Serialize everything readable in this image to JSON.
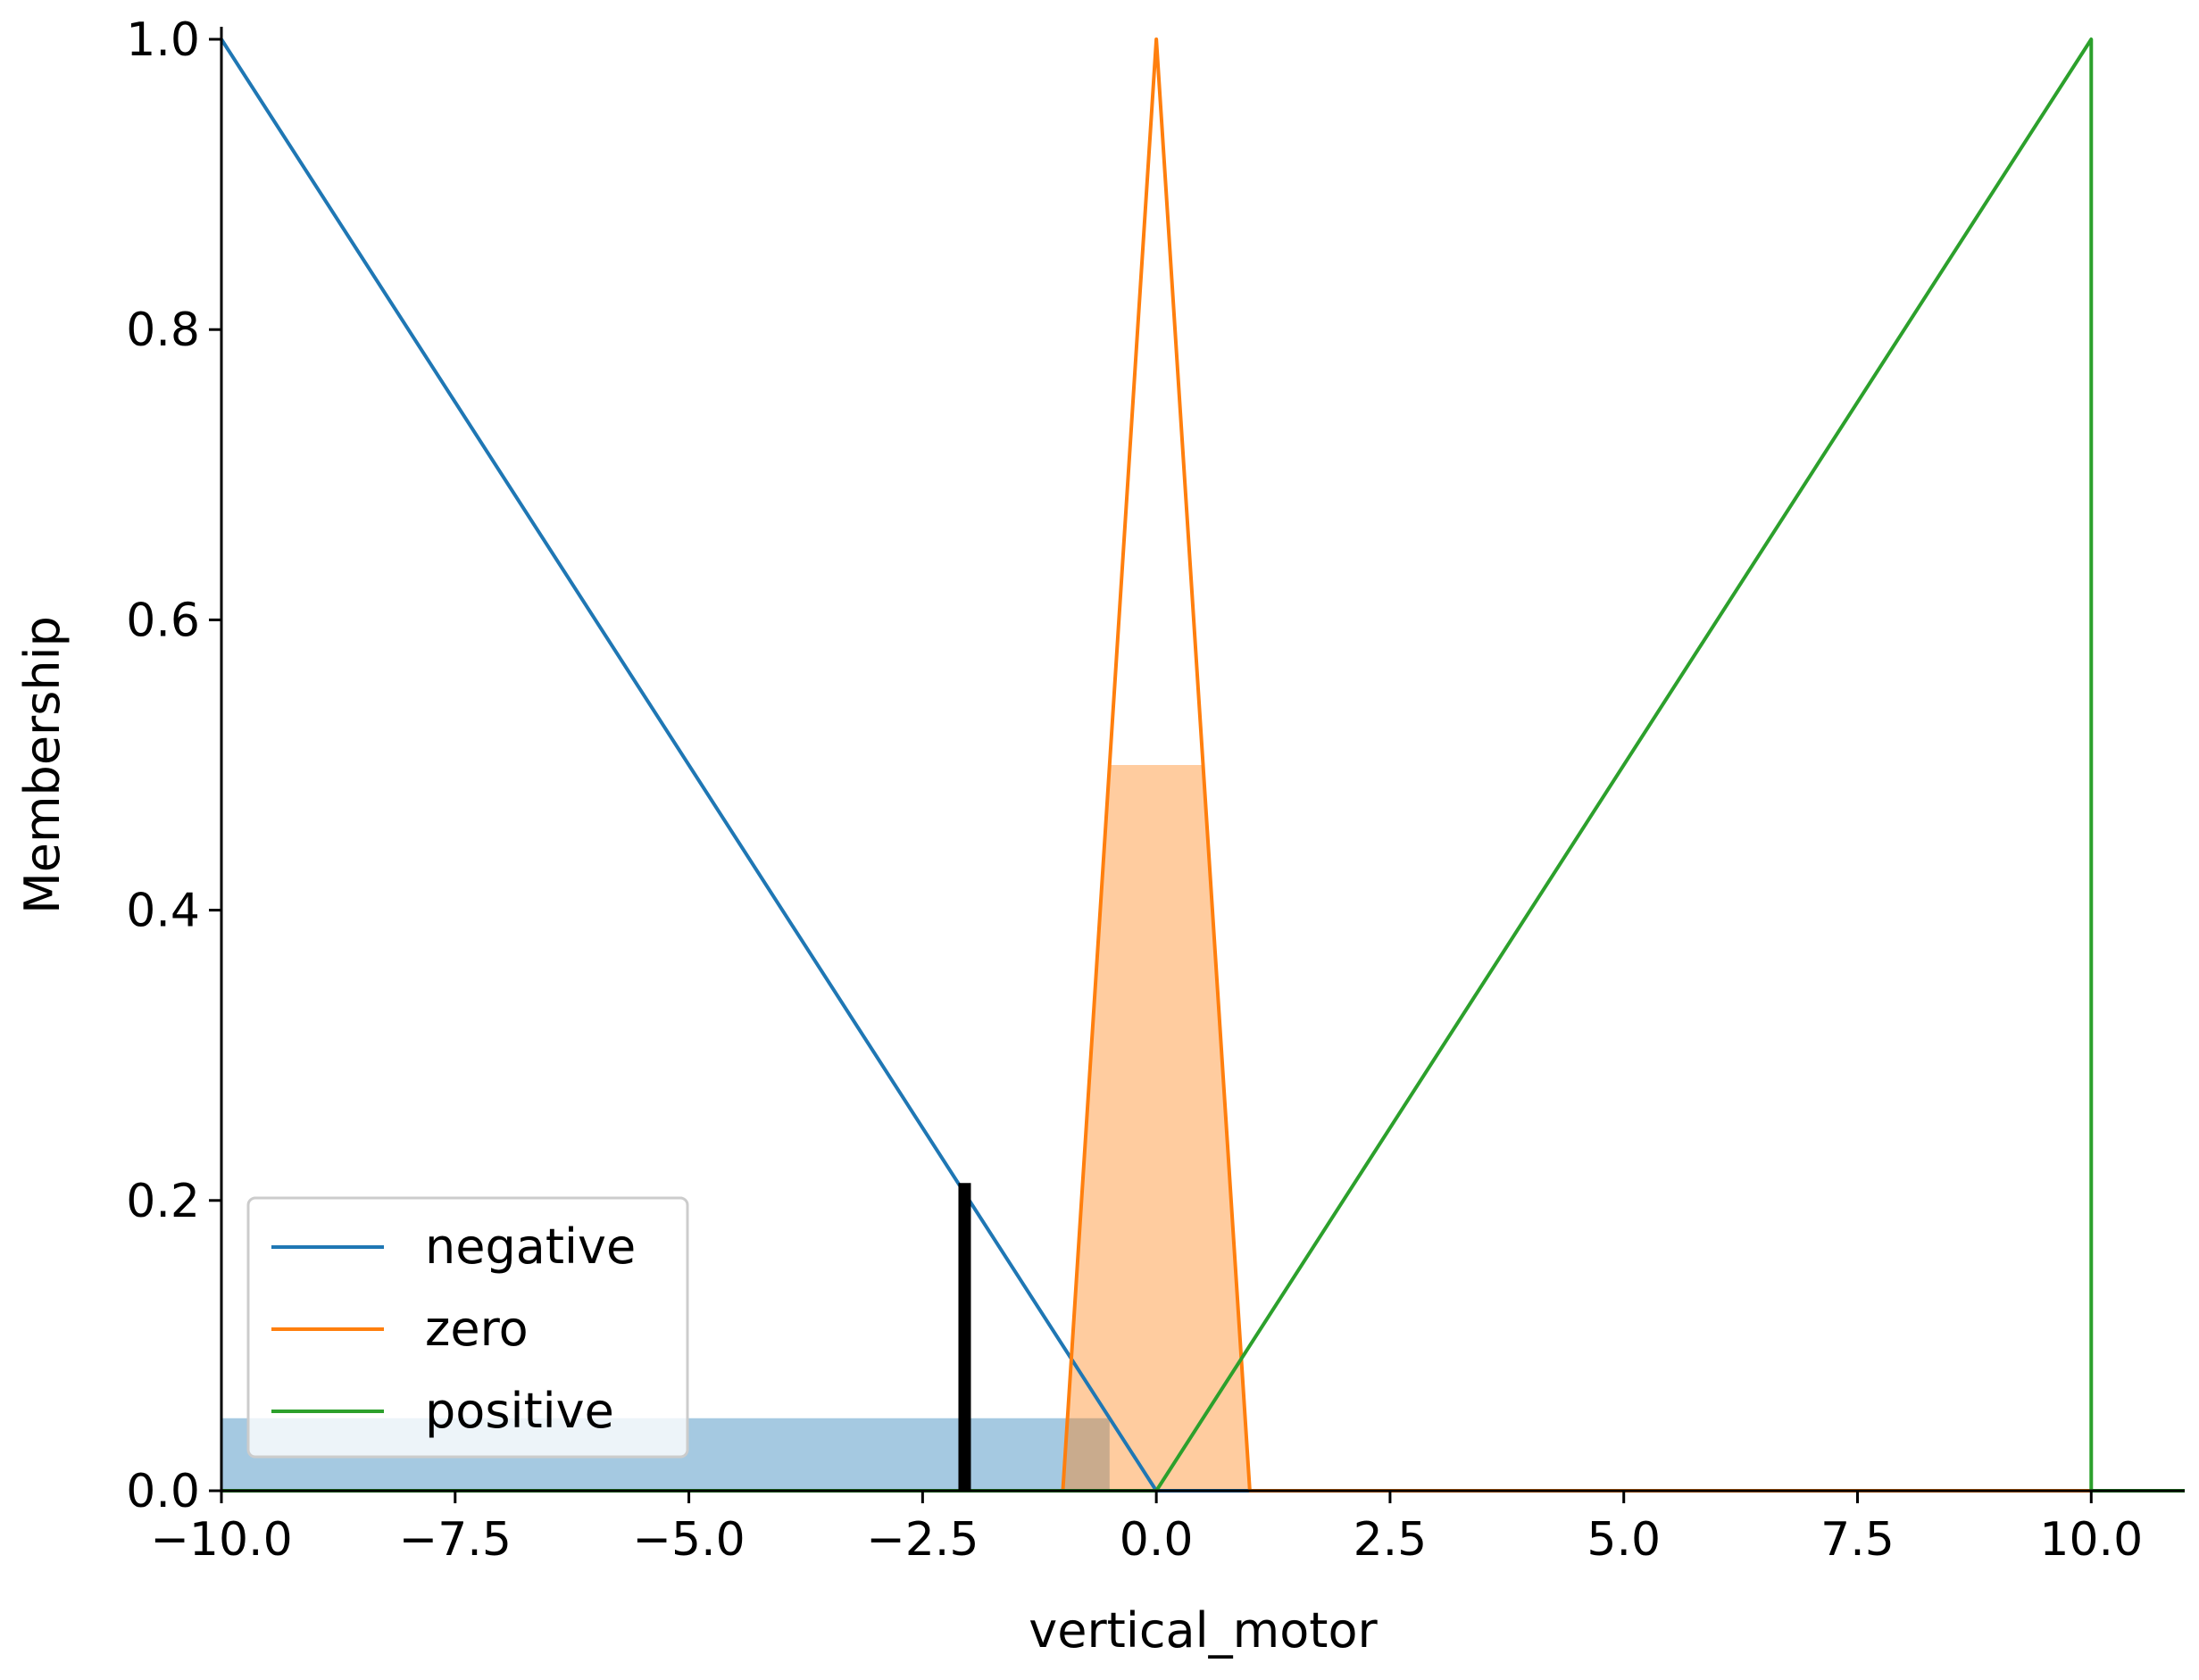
{
  "chart_data": {
    "type": "line",
    "title": "",
    "xlabel": "vertical_motor",
    "ylabel": "Membership",
    "xlim": [
      -10.0,
      11.0
    ],
    "ylim": [
      0.0,
      1.0
    ],
    "x_ticks": [
      "−10.0",
      "−7.5",
      "−5.0",
      "−2.5",
      "0.0",
      "2.5",
      "5.0",
      "7.5",
      "10.0"
    ],
    "x_tick_values": [
      -10.0,
      -7.5,
      -5.0,
      -2.5,
      0.0,
      2.5,
      5.0,
      7.5,
      10.0
    ],
    "y_ticks": [
      "0.0",
      "0.2",
      "0.4",
      "0.6",
      "0.8",
      "1.0"
    ],
    "y_tick_values": [
      0.0,
      0.2,
      0.4,
      0.6,
      0.8,
      1.0
    ],
    "grid": false,
    "legend_position": "lower-left",
    "series": [
      {
        "name": "negative",
        "color": "#1f77b4",
        "x": [
          -10,
          0,
          11
        ],
        "y": [
          1.0,
          0.0,
          0.0
        ]
      },
      {
        "name": "zero",
        "color": "#ff7f0e",
        "x": [
          -10,
          -1,
          0,
          1,
          11
        ],
        "y": [
          0.0,
          0.0,
          1.0,
          0.0,
          0.0
        ]
      },
      {
        "name": "positive",
        "color": "#2ca02c",
        "x": [
          -10,
          0,
          10,
          10,
          11
        ],
        "y": [
          0.0,
          0.0,
          1.0,
          0.0,
          0.0
        ]
      }
    ],
    "activations": [
      {
        "series": "negative",
        "level": 0.05,
        "x": [
          -10,
          -0.5
        ],
        "color": "#1f77b4",
        "opacity": 0.4
      },
      {
        "series": "zero",
        "level": 0.5,
        "x": [
          -1,
          1
        ],
        "color": "#ff7f0e",
        "opacity": 0.4
      }
    ],
    "crisp_output": {
      "x": -2.05,
      "y": 0.212,
      "color": "#000000"
    }
  }
}
